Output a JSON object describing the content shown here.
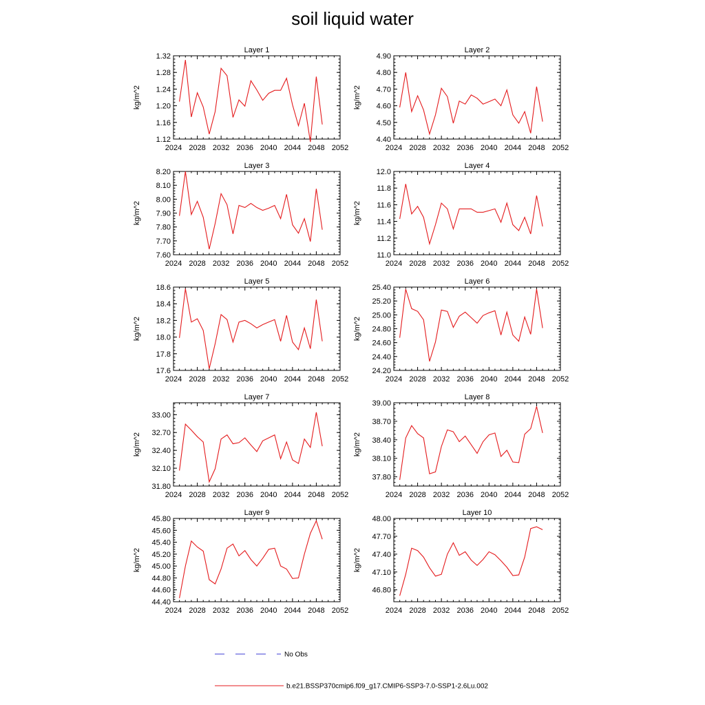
{
  "title": "soil liquid water",
  "legend": [
    {
      "label": "No Obs",
      "color": "#3b3bd6",
      "style": "dashed"
    },
    {
      "label": "b.e21.BSSP370cmip6.f09_g17.CMIP6-SSP3-7.0-SSP1-2.6Lu.002",
      "color": "#e41a1c",
      "style": "solid"
    }
  ],
  "series_color": "#e41a1c",
  "chart_data": [
    {
      "type": "line",
      "title": "Layer 1",
      "ylabel": "kg/m^2",
      "xlim": [
        2024,
        2052
      ],
      "xticks": [
        "2024",
        "2028",
        "2032",
        "2036",
        "2040",
        "2044",
        "2048",
        "2052"
      ],
      "ylim": [
        1.12,
        1.32
      ],
      "yticks": [
        "1.12",
        "1.16",
        "1.20",
        "1.24",
        "1.28",
        "1.32"
      ],
      "series": [
        {
          "x": [
            2025,
            2026,
            2027,
            2028,
            2029,
            2030,
            2031,
            2032,
            2033,
            2034,
            2035,
            2036,
            2037,
            2038,
            2039,
            2040,
            2041,
            2042,
            2043,
            2044,
            2045,
            2046,
            2047,
            2048,
            2049
          ],
          "values": [
            1.21,
            1.31,
            1.173,
            1.231,
            1.197,
            1.132,
            1.186,
            1.29,
            1.272,
            1.172,
            1.214,
            1.199,
            1.26,
            1.238,
            1.213,
            1.23,
            1.237,
            1.237,
            1.266,
            1.202,
            1.152,
            1.206,
            1.113,
            1.27,
            1.155
          ]
        }
      ]
    },
    {
      "type": "line",
      "title": "Layer 2",
      "ylabel": "kg/m^2",
      "xlim": [
        2024,
        2052
      ],
      "xticks": [
        "2024",
        "2028",
        "2032",
        "2036",
        "2040",
        "2044",
        "2048",
        "2052"
      ],
      "ylim": [
        4.4,
        4.9
      ],
      "yticks": [
        "4.40",
        "4.50",
        "4.60",
        "4.70",
        "4.80",
        "4.90"
      ],
      "series": [
        {
          "x": [
            2025,
            2026,
            2027,
            2028,
            2029,
            2030,
            2031,
            2032,
            2033,
            2034,
            2035,
            2036,
            2037,
            2038,
            2039,
            2040,
            2041,
            2042,
            2043,
            2044,
            2045,
            2046,
            2047,
            2048,
            2049
          ],
          "values": [
            4.59,
            4.8,
            4.565,
            4.66,
            4.575,
            4.43,
            4.545,
            4.705,
            4.655,
            4.495,
            4.628,
            4.61,
            4.665,
            4.645,
            4.61,
            4.625,
            4.64,
            4.6,
            4.695,
            4.545,
            4.495,
            4.565,
            4.435,
            4.715,
            4.505
          ]
        }
      ]
    },
    {
      "type": "line",
      "title": "Layer 3",
      "ylabel": "kg/m^2",
      "xlim": [
        2024,
        2052
      ],
      "xticks": [
        "2024",
        "2028",
        "2032",
        "2036",
        "2040",
        "2044",
        "2048",
        "2052"
      ],
      "ylim": [
        7.6,
        8.2
      ],
      "yticks": [
        "7.60",
        "7.70",
        "7.80",
        "7.90",
        "8.00",
        "8.10",
        "8.20"
      ],
      "series": [
        {
          "x": [
            2025,
            2026,
            2027,
            2028,
            2029,
            2030,
            2031,
            2032,
            2033,
            2034,
            2035,
            2036,
            2037,
            2038,
            2039,
            2040,
            2041,
            2042,
            2043,
            2044,
            2045,
            2046,
            2047,
            2048,
            2049
          ],
          "values": [
            7.88,
            8.2,
            7.89,
            7.985,
            7.87,
            7.64,
            7.825,
            8.04,
            7.96,
            7.75,
            7.955,
            7.94,
            7.97,
            7.94,
            7.92,
            7.935,
            7.955,
            7.86,
            8.035,
            7.815,
            7.755,
            7.86,
            7.695,
            8.075,
            7.78
          ]
        }
      ]
    },
    {
      "type": "line",
      "title": "Layer 4",
      "ylabel": "kg/m^2",
      "xlim": [
        2024,
        2052
      ],
      "xticks": [
        "2024",
        "2028",
        "2032",
        "2036",
        "2040",
        "2044",
        "2048",
        "2052"
      ],
      "ylim": [
        11.0,
        12.0
      ],
      "yticks": [
        "11.0",
        "11.2",
        "11.4",
        "11.6",
        "11.8",
        "12.0"
      ],
      "series": [
        {
          "x": [
            2025,
            2026,
            2027,
            2028,
            2029,
            2030,
            2031,
            2032,
            2033,
            2034,
            2035,
            2036,
            2037,
            2038,
            2039,
            2040,
            2041,
            2042,
            2043,
            2044,
            2045,
            2046,
            2047,
            2048,
            2049
          ],
          "values": [
            11.43,
            11.85,
            11.49,
            11.58,
            11.45,
            11.13,
            11.36,
            11.62,
            11.55,
            11.31,
            11.55,
            11.55,
            11.55,
            11.51,
            11.51,
            11.53,
            11.55,
            11.39,
            11.62,
            11.36,
            11.29,
            11.45,
            11.25,
            11.71,
            11.34
          ]
        }
      ]
    },
    {
      "type": "line",
      "title": "Layer 5",
      "ylabel": "kg/m^2",
      "xlim": [
        2024,
        2052
      ],
      "xticks": [
        "2024",
        "2028",
        "2032",
        "2036",
        "2040",
        "2044",
        "2048",
        "2052"
      ],
      "ylim": [
        17.6,
        18.6
      ],
      "yticks": [
        "17.6",
        "17.8",
        "18.0",
        "18.2",
        "18.4",
        "18.6"
      ],
      "series": [
        {
          "x": [
            2025,
            2026,
            2027,
            2028,
            2029,
            2030,
            2031,
            2032,
            2033,
            2034,
            2035,
            2036,
            2037,
            2038,
            2039,
            2040,
            2041,
            2042,
            2043,
            2044,
            2045,
            2046,
            2047,
            2048,
            2049
          ],
          "values": [
            17.99,
            18.58,
            18.18,
            18.22,
            18.08,
            17.62,
            17.92,
            18.27,
            18.21,
            17.94,
            18.18,
            18.2,
            18.16,
            18.11,
            18.15,
            18.18,
            18.21,
            17.95,
            18.26,
            17.94,
            17.85,
            18.11,
            17.86,
            18.45,
            17.95
          ]
        }
      ]
    },
    {
      "type": "line",
      "title": "Layer 6",
      "ylabel": "kg/m^2",
      "xlim": [
        2024,
        2052
      ],
      "xticks": [
        "2024",
        "2028",
        "2032",
        "2036",
        "2040",
        "2044",
        "2048",
        "2052"
      ],
      "ylim": [
        24.2,
        25.4
      ],
      "yticks": [
        "24.20",
        "24.40",
        "24.60",
        "24.80",
        "25.00",
        "25.20",
        "25.40"
      ],
      "series": [
        {
          "x": [
            2025,
            2026,
            2027,
            2028,
            2029,
            2030,
            2031,
            2032,
            2033,
            2034,
            2035,
            2036,
            2037,
            2038,
            2039,
            2040,
            2041,
            2042,
            2043,
            2044,
            2045,
            2046,
            2047,
            2048,
            2049
          ],
          "values": [
            24.67,
            25.37,
            25.09,
            25.05,
            24.93,
            24.33,
            24.61,
            25.07,
            25.05,
            24.82,
            24.98,
            25.04,
            24.96,
            24.88,
            24.99,
            25.03,
            25.06,
            24.71,
            25.04,
            24.71,
            24.62,
            24.97,
            24.72,
            25.37,
            24.81
          ]
        }
      ]
    },
    {
      "type": "line",
      "title": "Layer 7",
      "ylabel": "kg/m^2",
      "xlim": [
        2024,
        2052
      ],
      "xticks": [
        "2024",
        "2028",
        "2032",
        "2036",
        "2040",
        "2044",
        "2048",
        "2052"
      ],
      "ylim": [
        31.8,
        33.2
      ],
      "yticks": [
        "31.80",
        "32.10",
        "32.40",
        "32.70",
        "33.00"
      ],
      "series": [
        {
          "x": [
            2025,
            2026,
            2027,
            2028,
            2029,
            2030,
            2031,
            2032,
            2033,
            2034,
            2035,
            2036,
            2037,
            2038,
            2039,
            2040,
            2041,
            2042,
            2043,
            2044,
            2045,
            2046,
            2047,
            2048,
            2049
          ],
          "values": [
            32.06,
            32.84,
            32.74,
            32.63,
            32.54,
            31.87,
            32.09,
            32.59,
            32.66,
            32.51,
            32.53,
            32.61,
            32.49,
            32.38,
            32.56,
            32.61,
            32.66,
            32.26,
            32.54,
            32.24,
            32.18,
            32.59,
            32.45,
            33.04,
            32.47
          ]
        }
      ]
    },
    {
      "type": "line",
      "title": "Layer 8",
      "ylabel": "kg/m^2",
      "xlim": [
        2024,
        2052
      ],
      "xticks": [
        "2024",
        "2028",
        "2032",
        "2036",
        "2040",
        "2044",
        "2048",
        "2052"
      ],
      "ylim": [
        37.65,
        39.0
      ],
      "yticks": [
        "37.80",
        "38.10",
        "38.40",
        "38.70",
        "39.00"
      ],
      "series": [
        {
          "x": [
            2025,
            2026,
            2027,
            2028,
            2029,
            2030,
            2031,
            2032,
            2033,
            2034,
            2035,
            2036,
            2037,
            2038,
            2039,
            2040,
            2041,
            2042,
            2043,
            2044,
            2045,
            2046,
            2047,
            2048,
            2049
          ],
          "values": [
            37.75,
            38.43,
            38.63,
            38.5,
            38.43,
            37.85,
            37.88,
            38.29,
            38.56,
            38.53,
            38.37,
            38.46,
            38.32,
            38.18,
            38.37,
            38.48,
            38.51,
            38.13,
            38.23,
            38.04,
            38.03,
            38.49,
            38.58,
            38.94,
            38.51
          ]
        }
      ]
    },
    {
      "type": "line",
      "title": "Layer 9",
      "ylabel": "kg/m^2",
      "xlim": [
        2024,
        2052
      ],
      "xticks": [
        "2024",
        "2028",
        "2032",
        "2036",
        "2040",
        "2044",
        "2048",
        "2052"
      ],
      "ylim": [
        44.4,
        45.8
      ],
      "yticks": [
        "44.40",
        "44.60",
        "44.80",
        "45.00",
        "45.20",
        "45.40",
        "45.60",
        "45.80"
      ],
      "series": [
        {
          "x": [
            2025,
            2026,
            2027,
            2028,
            2029,
            2030,
            2031,
            2032,
            2033,
            2034,
            2035,
            2036,
            2037,
            2038,
            2039,
            2040,
            2041,
            2042,
            2043,
            2044,
            2045,
            2046,
            2047,
            2048,
            2049
          ],
          "values": [
            44.46,
            45.0,
            45.42,
            45.32,
            45.25,
            44.77,
            44.7,
            44.95,
            45.3,
            45.37,
            45.17,
            45.26,
            45.11,
            45.0,
            45.13,
            45.28,
            45.3,
            45.0,
            44.95,
            44.79,
            44.8,
            45.2,
            45.55,
            45.76,
            45.45
          ]
        }
      ]
    },
    {
      "type": "line",
      "title": "Layer 10",
      "ylabel": "kg/m^2",
      "xlim": [
        2024,
        2052
      ],
      "xticks": [
        "2024",
        "2028",
        "2032",
        "2036",
        "2040",
        "2044",
        "2048",
        "2052"
      ],
      "ylim": [
        46.6,
        48.0
      ],
      "yticks": [
        "46.80",
        "47.10",
        "47.40",
        "47.70",
        "48.00"
      ],
      "series": [
        {
          "x": [
            2025,
            2026,
            2027,
            2028,
            2029,
            2030,
            2031,
            2032,
            2033,
            2034,
            2035,
            2036,
            2037,
            2038,
            2039,
            2040,
            2041,
            2042,
            2043,
            2044,
            2045,
            2046,
            2047,
            2048,
            2049
          ],
          "values": [
            46.7,
            47.06,
            47.5,
            47.46,
            47.35,
            47.17,
            47.03,
            47.06,
            47.4,
            47.59,
            47.38,
            47.44,
            47.3,
            47.21,
            47.31,
            47.44,
            47.39,
            47.29,
            47.18,
            47.04,
            47.05,
            47.35,
            47.83,
            47.86,
            47.81
          ]
        }
      ]
    }
  ]
}
